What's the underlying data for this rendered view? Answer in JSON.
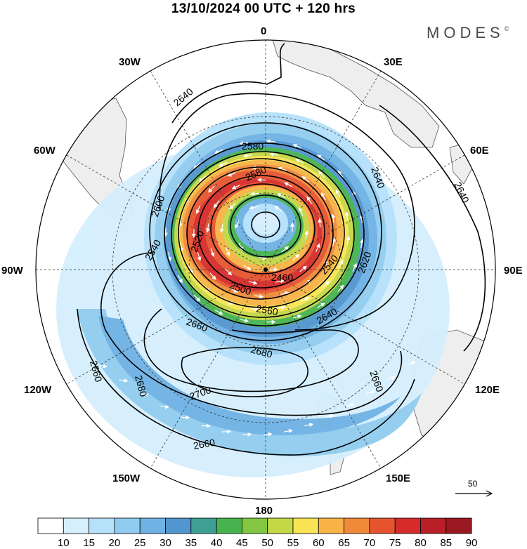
{
  "header": {
    "title": "13/10/2024  00 UTC  + 120 hrs",
    "brand": "MODES",
    "brand_mark": "©"
  },
  "map": {
    "projection": "polar stereographic (south pole)",
    "longitude_labels": {
      "top": "0",
      "upper_right": "30E",
      "right_upper": "60E",
      "right": "90E",
      "lower_right": "120E",
      "bottom_right": "150E",
      "bottom": "180",
      "bottom_left": "150W",
      "lower_left": "120W",
      "left": "90W",
      "left_upper": "60W",
      "upper_left": "30W"
    },
    "contour_labels": [
      "2640",
      "2640",
      "2640",
      "2580",
      "2580",
      "2600",
      "2540",
      "2520",
      "2500",
      "2460",
      "2540",
      "2620",
      "2560",
      "2640",
      "2660",
      "2680",
      "2660",
      "2680",
      "2660",
      "2700",
      "2660"
    ],
    "colors": {
      "land": "#eeeeee",
      "coast": "#555555",
      "graticule": "#333333",
      "contour": "#000000",
      "wind_vectors": "#ffffff"
    }
  },
  "reference_vector": {
    "label": "50"
  },
  "colorbar": {
    "levels": [
      "10",
      "15",
      "20",
      "25",
      "30",
      "35",
      "40",
      "45",
      "50",
      "55",
      "60",
      "65",
      "70",
      "75",
      "80",
      "85",
      "90"
    ],
    "colors": [
      "#ffffff",
      "#d5effd",
      "#b5e1fb",
      "#90ccef",
      "#6eb2e4",
      "#5196cf",
      "#3e9f94",
      "#46b34f",
      "#82c642",
      "#c4d845",
      "#f8e454",
      "#f7b345",
      "#ef8a3a",
      "#e6542f",
      "#d52c2b",
      "#b91f28",
      "#9a1820"
    ]
  }
}
